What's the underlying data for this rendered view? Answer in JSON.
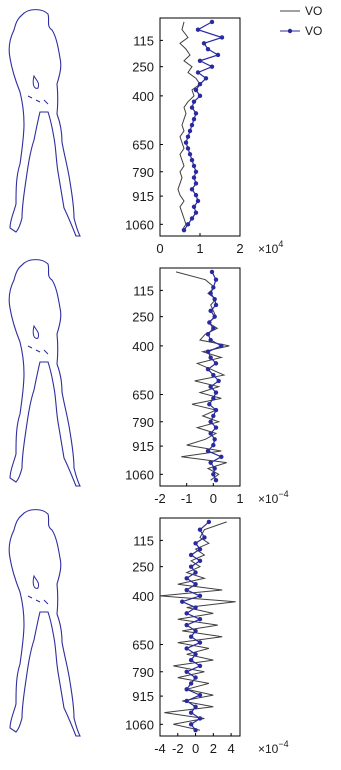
{
  "legend": {
    "placement": "top-right",
    "entries": [
      {
        "label": "VO",
        "style": "line",
        "color": "#404040"
      },
      {
        "label": "VO",
        "style": "line-dots",
        "color": "#2a2aa0"
      }
    ]
  },
  "colors": {
    "outline": "#2e2e9e",
    "grey_series": "#404040",
    "blue_series": "#2a2aa0",
    "axis": "#000000"
  },
  "chart_data": [
    {
      "type": "line",
      "y_ticks": [
        "115",
        "250",
        "400",
        "650",
        "790",
        "915",
        "1060"
      ],
      "y_tick_values": [
        115,
        250,
        400,
        650,
        790,
        915,
        1060
      ],
      "y_axis_reversed": true,
      "ylim": [
        0,
        1120
      ],
      "xlim": [
        0,
        2
      ],
      "x_ticks": [
        "0",
        "1",
        "2"
      ],
      "x_tick_values": [
        0,
        1,
        2
      ],
      "x_exponent_label": "×10",
      "x_exponent_power": "4",
      "y": [
        20,
        60,
        100,
        130,
        160,
        190,
        220,
        250,
        280,
        310,
        340,
        370,
        400,
        430,
        460,
        490,
        520,
        550,
        580,
        610,
        640,
        670,
        700,
        730,
        760,
        790,
        820,
        850,
        880,
        910,
        940,
        970,
        1000,
        1030,
        1060,
        1090
      ],
      "series": [
        {
          "style": "line",
          "values": [
            0.6,
            0.55,
            0.7,
            0.5,
            0.65,
            0.75,
            0.6,
            0.8,
            0.7,
            0.9,
            1.0,
            0.8,
            0.85,
            0.7,
            0.6,
            0.65,
            0.6,
            0.55,
            0.6,
            0.5,
            0.55,
            0.6,
            0.5,
            0.55,
            0.6,
            0.5,
            0.55,
            0.5,
            0.45,
            0.5,
            0.6,
            0.5,
            0.55,
            0.6,
            0.65,
            0.55
          ]
        },
        {
          "style": "line-dots",
          "values": [
            1.3,
            0.95,
            1.55,
            1.1,
            1.2,
            1.45,
            1.0,
            1.3,
            0.95,
            1.15,
            1.0,
            0.9,
            1.0,
            0.85,
            0.8,
            0.9,
            0.85,
            0.8,
            0.75,
            0.7,
            0.65,
            0.7,
            0.75,
            0.8,
            0.85,
            0.9,
            0.85,
            0.9,
            0.8,
            0.9,
            0.95,
            0.85,
            0.9,
            0.8,
            0.7,
            0.6
          ]
        }
      ]
    },
    {
      "type": "line",
      "y_ticks": [
        "115",
        "250",
        "400",
        "650",
        "790",
        "915",
        "1060"
      ],
      "y_tick_values": [
        115,
        250,
        400,
        650,
        790,
        915,
        1060
      ],
      "y_axis_reversed": true,
      "ylim": [
        0,
        1120
      ],
      "xlim": [
        -2,
        1
      ],
      "x_ticks": [
        "-2",
        "-1",
        "0",
        "1"
      ],
      "x_tick_values": [
        -2,
        -1,
        0,
        1
      ],
      "x_exponent_label": "×10",
      "x_exponent_power": "−4",
      "y": [
        20,
        60,
        100,
        130,
        160,
        190,
        220,
        250,
        280,
        310,
        340,
        370,
        400,
        430,
        460,
        490,
        520,
        550,
        580,
        610,
        640,
        670,
        700,
        730,
        760,
        790,
        820,
        850,
        880,
        910,
        940,
        970,
        1000,
        1030,
        1060,
        1090
      ],
      "series": [
        {
          "style": "line",
          "values": [
            -1.4,
            -0.3,
            0.05,
            -0.2,
            0.1,
            -0.1,
            0.0,
            0.1,
            -0.2,
            0.15,
            -0.3,
            -0.5,
            0.6,
            -0.4,
            0.3,
            -0.6,
            -0.1,
            0.4,
            -0.7,
            0.2,
            -0.5,
            0.3,
            -0.8,
            0.1,
            -0.4,
            0.2,
            -0.6,
            0.1,
            -0.3,
            -1.0,
            0.3,
            -1.2,
            0.5,
            -0.2,
            0.2,
            -0.1
          ]
        },
        {
          "style": "line-dots",
          "values": [
            -0.05,
            0.1,
            0.0,
            -0.1,
            0.05,
            0.1,
            -0.1,
            0.05,
            -0.15,
            0.0,
            -0.2,
            -0.1,
            0.3,
            -0.2,
            -0.1,
            0.1,
            -0.2,
            0.0,
            0.2,
            -0.1,
            0.1,
            0.0,
            -0.15,
            0.1,
            0.0,
            -0.1,
            0.1,
            -0.1,
            0.05,
            0.0,
            -0.2,
            0.3,
            -0.1,
            0.05,
            0.0,
            0.1
          ]
        }
      ]
    },
    {
      "type": "line",
      "y_ticks": [
        "115",
        "250",
        "400",
        "650",
        "790",
        "915",
        "1060"
      ],
      "y_tick_values": [
        115,
        250,
        400,
        650,
        790,
        915,
        1060
      ],
      "y_axis_reversed": true,
      "ylim": [
        0,
        1120
      ],
      "xlim": [
        -4,
        5
      ],
      "x_ticks": [
        "-4",
        "-2",
        "0",
        "2",
        "4"
      ],
      "x_tick_values": [
        -4,
        -2,
        0,
        2,
        4
      ],
      "x_exponent_label": "×10",
      "x_exponent_power": "−4",
      "y": [
        20,
        60,
        100,
        130,
        160,
        190,
        220,
        250,
        280,
        310,
        340,
        370,
        400,
        430,
        460,
        490,
        520,
        550,
        580,
        610,
        640,
        670,
        700,
        730,
        760,
        790,
        820,
        850,
        880,
        910,
        940,
        970,
        1000,
        1030,
        1060,
        1090
      ],
      "series": [
        {
          "style": "line",
          "values": [
            3.5,
            1.0,
            0.5,
            1.5,
            0.0,
            1.0,
            -0.5,
            0.5,
            -1.0,
            1.0,
            -2.0,
            3.0,
            -4.0,
            4.5,
            -1.0,
            2.0,
            -2.0,
            2.5,
            -1.5,
            3.0,
            -2.0,
            1.5,
            -1.0,
            2.0,
            -2.5,
            1.0,
            -2.0,
            1.5,
            -1.0,
            2.0,
            -1.5,
            2.0,
            -3.5,
            1.0,
            -2.5,
            0.5
          ]
        },
        {
          "style": "line-dots",
          "values": [
            1.5,
            0.5,
            1.0,
            0.0,
            0.5,
            -0.5,
            0.5,
            -0.5,
            0.0,
            -1.0,
            0.0,
            -1.0,
            0.5,
            -1.5,
            0.0,
            -1.0,
            0.5,
            -1.0,
            0.0,
            -0.5,
            0.5,
            -1.0,
            0.0,
            -0.5,
            0.5,
            -1.0,
            0.0,
            -0.5,
            -1.0,
            0.5,
            -1.0,
            0.0,
            -0.5,
            0.5,
            -0.5,
            0.0
          ]
        }
      ]
    }
  ]
}
